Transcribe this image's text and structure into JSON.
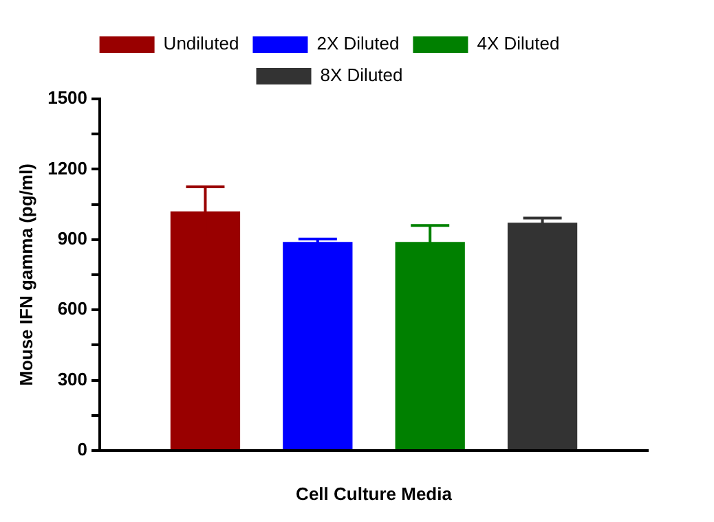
{
  "chart_data": {
    "type": "bar",
    "ylabel": "Mouse IFN gamma (pg/ml)",
    "xlabel": "Cell Culture Media",
    "categories": [
      null
    ],
    "series": [
      {
        "name": "Undiluted",
        "color": "#990000",
        "values": [
          1020
        ],
        "errors": [
          105
        ]
      },
      {
        "name": "2X Diluted",
        "color": "#0000ff",
        "values": [
          890
        ],
        "errors": [
          12
        ]
      },
      {
        "name": "4X Diluted",
        "color": "#008000",
        "values": [
          890
        ],
        "errors": [
          70
        ]
      },
      {
        "name": "8X Diluted",
        "color": "#333333",
        "values": [
          972
        ],
        "errors": [
          20
        ]
      }
    ],
    "ylim": [
      0,
      1500
    ],
    "yticks": [
      0,
      {
        "value": 150,
        "label": null
      },
      300,
      {
        "value": 450,
        "label": null
      },
      600,
      {
        "value": 750,
        "label": null
      },
      900,
      {
        "value": 1050,
        "label": null
      },
      1200,
      {
        "value": 1350,
        "label": null
      },
      1500
    ],
    "grid": false,
    "legend": "top"
  }
}
